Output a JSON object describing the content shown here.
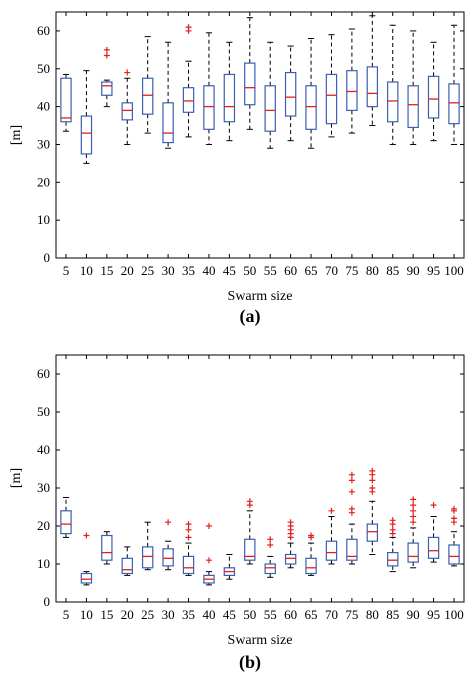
{
  "chart_data": [
    {
      "type": "box",
      "panel_label": "(a)",
      "xlabel": "Swarm size",
      "ylabel": "[m]",
      "ylim": [
        0,
        65
      ],
      "yticks": [
        0,
        10,
        20,
        30,
        40,
        50,
        60
      ],
      "categories": [
        "5",
        "10",
        "15",
        "20",
        "25",
        "30",
        "35",
        "40",
        "45",
        "50",
        "55",
        "60",
        "65",
        "70",
        "75",
        "80",
        "85",
        "90",
        "95",
        "100"
      ],
      "grid": false,
      "box_color": "#3a5fb0",
      "median_color": "#e02020",
      "outlier_color": "#e02020",
      "boxes": [
        {
          "whisker_low": 33.5,
          "q1": 36,
          "median": 37,
          "q3": 47.5,
          "whisker_high": 48.5,
          "outliers": []
        },
        {
          "whisker_low": 25,
          "q1": 27.5,
          "median": 33,
          "q3": 37.5,
          "whisker_high": 49.5,
          "outliers": []
        },
        {
          "whisker_low": 40,
          "q1": 43,
          "median": 45.5,
          "q3": 46.5,
          "whisker_high": 47,
          "outliers": [
            53.5,
            55
          ]
        },
        {
          "whisker_low": 30,
          "q1": 36.5,
          "median": 39,
          "q3": 41,
          "whisker_high": 47.5,
          "outliers": [
            49
          ]
        },
        {
          "whisker_low": 33,
          "q1": 38,
          "median": 43,
          "q3": 47.5,
          "whisker_high": 58.5,
          "outliers": []
        },
        {
          "whisker_low": 29,
          "q1": 30.5,
          "median": 33,
          "q3": 41,
          "whisker_high": 57,
          "outliers": []
        },
        {
          "whisker_low": 32,
          "q1": 38.5,
          "median": 41.5,
          "q3": 45,
          "whisker_high": 52,
          "outliers": [
            60,
            61
          ]
        },
        {
          "whisker_low": 30,
          "q1": 34,
          "median": 40,
          "q3": 45.5,
          "whisker_high": 59.5,
          "outliers": []
        },
        {
          "whisker_low": 31,
          "q1": 36,
          "median": 40,
          "q3": 48.5,
          "whisker_high": 57,
          "outliers": []
        },
        {
          "whisker_low": 34,
          "q1": 40.5,
          "median": 45,
          "q3": 51.5,
          "whisker_high": 63.5,
          "outliers": []
        },
        {
          "whisker_low": 29,
          "q1": 33.5,
          "median": 39,
          "q3": 45.5,
          "whisker_high": 57,
          "outliers": []
        },
        {
          "whisker_low": 31,
          "q1": 37.5,
          "median": 42.5,
          "q3": 49,
          "whisker_high": 56,
          "outliers": []
        },
        {
          "whisker_low": 29,
          "q1": 34,
          "median": 40,
          "q3": 45.5,
          "whisker_high": 58,
          "outliers": []
        },
        {
          "whisker_low": 32,
          "q1": 35.5,
          "median": 43,
          "q3": 48.5,
          "whisker_high": 59,
          "outliers": []
        },
        {
          "whisker_low": 33,
          "q1": 39,
          "median": 44,
          "q3": 49.5,
          "whisker_high": 60.5,
          "outliers": []
        },
        {
          "whisker_low": 35,
          "q1": 40,
          "median": 43.5,
          "q3": 50.5,
          "whisker_high": 64,
          "outliers": []
        },
        {
          "whisker_low": 30,
          "q1": 36,
          "median": 41.5,
          "q3": 46.5,
          "whisker_high": 61.5,
          "outliers": []
        },
        {
          "whisker_low": 30,
          "q1": 34.5,
          "median": 40.5,
          "q3": 45.5,
          "whisker_high": 60,
          "outliers": []
        },
        {
          "whisker_low": 31,
          "q1": 37,
          "median": 42,
          "q3": 48,
          "whisker_high": 57,
          "outliers": []
        },
        {
          "whisker_low": 30,
          "q1": 35.5,
          "median": 41,
          "q3": 46,
          "whisker_high": 61.5,
          "outliers": []
        }
      ]
    },
    {
      "type": "box",
      "panel_label": "(b)",
      "xlabel": "Swarm size",
      "ylabel": "[m]",
      "ylim": [
        0,
        65
      ],
      "yticks": [
        0,
        10,
        20,
        30,
        40,
        50,
        60
      ],
      "categories": [
        "5",
        "10",
        "15",
        "20",
        "25",
        "30",
        "35",
        "40",
        "45",
        "50",
        "55",
        "60",
        "65",
        "70",
        "75",
        "80",
        "85",
        "90",
        "95",
        "100"
      ],
      "grid": false,
      "box_color": "#3a5fb0",
      "median_color": "#e02020",
      "outlier_color": "#e02020",
      "boxes": [
        {
          "whisker_low": 17,
          "q1": 18,
          "median": 20.5,
          "q3": 24,
          "whisker_high": 27.5,
          "outliers": []
        },
        {
          "whisker_low": 4.5,
          "q1": 5,
          "median": 6,
          "q3": 7.5,
          "whisker_high": 8,
          "outliers": [
            17.5
          ]
        },
        {
          "whisker_low": 10,
          "q1": 11,
          "median": 13,
          "q3": 17.5,
          "whisker_high": 18.5,
          "outliers": []
        },
        {
          "whisker_low": 7,
          "q1": 7.5,
          "median": 8.5,
          "q3": 11.5,
          "whisker_high": 14.5,
          "outliers": []
        },
        {
          "whisker_low": 8.5,
          "q1": 9,
          "median": 12,
          "q3": 14.5,
          "whisker_high": 21,
          "outliers": []
        },
        {
          "whisker_low": 8.5,
          "q1": 9.5,
          "median": 11.5,
          "q3": 14,
          "whisker_high": 16,
          "outliers": [
            21
          ]
        },
        {
          "whisker_low": 7,
          "q1": 7.5,
          "median": 9,
          "q3": 12,
          "whisker_high": 15.5,
          "outliers": [
            17,
            19,
            20.5
          ]
        },
        {
          "whisker_low": 4.5,
          "q1": 5,
          "median": 6,
          "q3": 7,
          "whisker_high": 8,
          "outliers": [
            11,
            20
          ]
        },
        {
          "whisker_low": 6,
          "q1": 7,
          "median": 8,
          "q3": 9,
          "whisker_high": 12.5,
          "outliers": []
        },
        {
          "whisker_low": 10,
          "q1": 11,
          "median": 12,
          "q3": 16.5,
          "whisker_high": 24,
          "outliers": [
            25.5,
            26.5
          ]
        },
        {
          "whisker_low": 6.5,
          "q1": 7.5,
          "median": 9,
          "q3": 10,
          "whisker_high": 12,
          "outliers": [
            15,
            16.5
          ]
        },
        {
          "whisker_low": 9,
          "q1": 10,
          "median": 11.5,
          "q3": 12.5,
          "whisker_high": 15.5,
          "outliers": [
            17,
            18,
            19,
            20,
            21
          ]
        },
        {
          "whisker_low": 7,
          "q1": 7.5,
          "median": 9,
          "q3": 11.5,
          "whisker_high": 15.5,
          "outliers": [
            17,
            17.5
          ]
        },
        {
          "whisker_low": 10,
          "q1": 11,
          "median": 13,
          "q3": 16,
          "whisker_high": 22.5,
          "outliers": [
            24
          ]
        },
        {
          "whisker_low": 10,
          "q1": 11,
          "median": 12,
          "q3": 16.5,
          "whisker_high": 20.5,
          "outliers": [
            23.5,
            24.5,
            29,
            32,
            33.5
          ]
        },
        {
          "whisker_low": 12.5,
          "q1": 16,
          "median": 18.5,
          "q3": 20.5,
          "whisker_high": 26.5,
          "outliers": [
            29,
            30,
            32,
            33.5,
            34.5
          ]
        },
        {
          "whisker_low": 8,
          "q1": 9.5,
          "median": 11,
          "q3": 13,
          "whisker_high": 17,
          "outliers": [
            18,
            19,
            20.5,
            21.5
          ]
        },
        {
          "whisker_low": 9,
          "q1": 10.5,
          "median": 12,
          "q3": 15.5,
          "whisker_high": 19.5,
          "outliers": [
            21,
            22.5,
            24,
            25.5,
            27
          ]
        },
        {
          "whisker_low": 10.5,
          "q1": 11.5,
          "median": 13.5,
          "q3": 17,
          "whisker_high": 22.5,
          "outliers": [
            25.5
          ]
        },
        {
          "whisker_low": 9.5,
          "q1": 10,
          "median": 12,
          "q3": 15,
          "whisker_high": 18.5,
          "outliers": [
            21,
            22,
            24,
            24.5
          ]
        }
      ]
    }
  ]
}
